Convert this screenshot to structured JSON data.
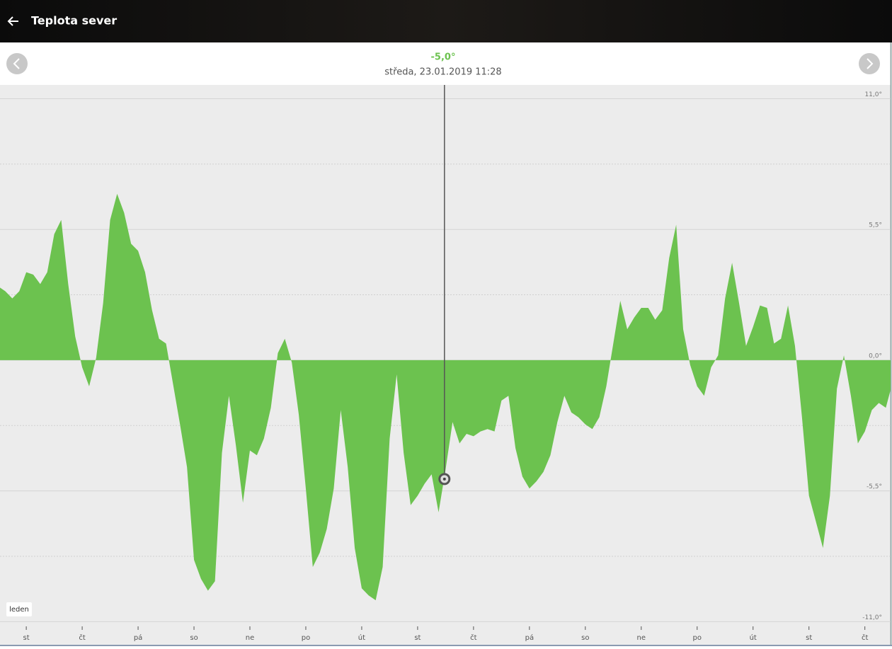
{
  "header": {
    "title": "Teplota sever"
  },
  "chart_data": {
    "type": "area",
    "selected": {
      "x": 7.48,
      "value": -5.0,
      "value_label": "-5,0°",
      "date": "středa, 23.01.2019 11:28"
    },
    "annotation": "leden",
    "x": [
      -0.5,
      -0.375,
      -0.25,
      -0.125,
      0,
      0.125,
      0.25,
      0.375,
      0.5,
      0.625,
      0.75,
      0.875,
      1,
      1.125,
      1.25,
      1.375,
      1.5,
      1.625,
      1.75,
      1.875,
      2,
      2.125,
      2.25,
      2.375,
      2.5,
      2.625,
      2.75,
      2.875,
      3,
      3.125,
      3.25,
      3.375,
      3.5,
      3.625,
      3.75,
      3.875,
      4,
      4.125,
      4.25,
      4.375,
      4.5,
      4.625,
      4.75,
      4.875,
      5,
      5.125,
      5.25,
      5.375,
      5.5,
      5.625,
      5.75,
      5.875,
      6,
      6.125,
      6.25,
      6.375,
      6.5,
      6.625,
      6.75,
      6.875,
      7,
      7.125,
      7.25,
      7.375,
      7.5,
      7.625,
      7.75,
      7.875,
      8,
      8.125,
      8.25,
      8.375,
      8.5,
      8.625,
      8.75,
      8.875,
      9,
      9.125,
      9.25,
      9.375,
      9.5,
      9.625,
      9.75,
      9.875,
      10,
      10.125,
      10.25,
      10.375,
      10.5,
      10.625,
      10.75,
      10.875,
      11,
      11.125,
      11.25,
      11.375,
      11.5,
      11.625,
      11.75,
      11.875,
      12,
      12.125,
      12.25,
      12.375,
      12.5,
      12.625,
      12.75,
      12.875,
      13,
      13.125,
      13.25,
      13.375,
      13.5,
      13.625,
      13.75,
      13.875,
      14,
      14.125,
      14.25,
      14.375,
      14.5,
      14.625,
      14.75,
      14.875,
      15,
      15.125,
      15.25,
      15.375,
      15.5
    ],
    "series": [
      {
        "color": "#6cc24f",
        "values": [
          3.1,
          2.9,
          2.6,
          2.9,
          3.7,
          3.6,
          3.2,
          3.7,
          5.3,
          5.9,
          3.2,
          1.0,
          -0.3,
          -1.1,
          0.1,
          2.4,
          5.9,
          7.0,
          6.2,
          4.9,
          4.6,
          3.7,
          2.1,
          0.9,
          0.7,
          -1.0,
          -2.7,
          -4.5,
          -8.4,
          -9.2,
          -9.7,
          -9.3,
          -3.9,
          -1.5,
          -3.6,
          -6.0,
          -3.8,
          -4.0,
          -3.3,
          -2.0,
          0.3,
          0.9,
          -0.1,
          -2.3,
          -5.4,
          -8.7,
          -8.1,
          -7.1,
          -5.4,
          -2.1,
          -4.5,
          -7.9,
          -9.6,
          -9.9,
          -10.1,
          -8.7,
          -3.3,
          -0.6,
          -3.9,
          -6.1,
          -5.7,
          -5.2,
          -4.8,
          -6.4,
          -4.6,
          -2.6,
          -3.5,
          -3.1,
          -3.2,
          -3.0,
          -2.9,
          -3.0,
          -1.7,
          -1.5,
          -3.7,
          -4.9,
          -5.4,
          -5.1,
          -4.7,
          -4.0,
          -2.6,
          -1.5,
          -2.2,
          -2.4,
          -2.7,
          -2.9,
          -2.4,
          -1.1,
          0.7,
          2.5,
          1.3,
          1.8,
          2.2,
          2.2,
          1.7,
          2.1,
          4.3,
          5.7,
          1.3,
          -0.2,
          -1.1,
          -1.5,
          -0.3,
          0.2,
          2.6,
          4.1,
          2.4,
          0.6,
          1.4,
          2.3,
          2.2,
          0.7,
          0.9,
          2.3,
          0.6,
          -2.4,
          -5.7,
          -6.8,
          -7.9,
          -5.7,
          -1.2,
          0.2,
          -1.5,
          -3.5,
          -3.0,
          -2.1,
          -1.8,
          -2.0,
          -0.9
        ]
      }
    ],
    "xlim": [
      -0.47,
      15.46
    ],
    "ylim": [
      -11.05,
      11.58
    ],
    "xticks": [
      {
        "value": 0,
        "label": "st"
      },
      {
        "value": 1,
        "label": "čt"
      },
      {
        "value": 2,
        "label": "pá"
      },
      {
        "value": 3,
        "label": "so"
      },
      {
        "value": 4,
        "label": "ne"
      },
      {
        "value": 5,
        "label": "po"
      },
      {
        "value": 6,
        "label": "út"
      },
      {
        "value": 7,
        "label": "st"
      },
      {
        "value": 8,
        "label": "čt"
      },
      {
        "value": 9,
        "label": "pá"
      },
      {
        "value": 10,
        "label": "so"
      },
      {
        "value": 11,
        "label": "ne"
      },
      {
        "value": 12,
        "label": "po"
      },
      {
        "value": 13,
        "label": "út"
      },
      {
        "value": 14,
        "label": "st"
      },
      {
        "value": 15,
        "label": "čt"
      }
    ],
    "yticks": [
      {
        "value": 11,
        "label": "11,0°"
      },
      {
        "value": 5.5,
        "label": "5,5°"
      },
      {
        "value": 0,
        "label": "0,0°"
      },
      {
        "value": -5.5,
        "label": "-5,5°"
      },
      {
        "value": -11,
        "label": "-11,0°"
      }
    ],
    "minor_yticks": [
      8.25,
      2.75,
      -2.75,
      -8.25
    ],
    "grid": true
  }
}
